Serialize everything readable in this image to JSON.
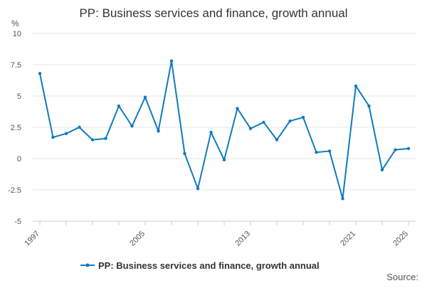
{
  "chart_data": {
    "type": "line",
    "title": "PP: Business services and finance, growth annual",
    "ylabel": "%",
    "ylim": [
      -5,
      10
    ],
    "yticks": [
      -5,
      -2.5,
      0,
      2.5,
      5,
      7.5,
      10
    ],
    "ytick_labels": [
      "-5",
      "-2.5",
      "0",
      "2.5",
      "5",
      "7.5",
      "10"
    ],
    "xlim": [
      1997,
      2025
    ],
    "xtick_labels": [
      "1997",
      "2005",
      "2013",
      "2021",
      "2025"
    ],
    "xticks": [
      1997,
      1999,
      2001,
      2003,
      2005,
      2007,
      2009,
      2011,
      2013,
      2015,
      2017,
      2019,
      2021,
      2023,
      2025
    ],
    "grid": true,
    "legend": "bottom",
    "series": [
      {
        "name": "PP: Business services and finance, growth annual",
        "color": "#0f7bbd",
        "x": [
          1997,
          1998,
          1999,
          2000,
          2001,
          2002,
          2003,
          2004,
          2005,
          2006,
          2007,
          2008,
          2009,
          2010,
          2011,
          2012,
          2013,
          2014,
          2015,
          2016,
          2017,
          2018,
          2019,
          2020,
          2021,
          2022,
          2023,
          2024,
          2025
        ],
        "values": [
          6.8,
          1.7,
          2.0,
          2.5,
          1.5,
          1.6,
          4.2,
          2.6,
          4.9,
          2.2,
          7.8,
          0.4,
          -2.4,
          2.1,
          -0.1,
          4.0,
          2.4,
          2.9,
          1.5,
          3.0,
          3.3,
          0.5,
          0.6,
          -3.2,
          5.8,
          4.2,
          -0.9,
          0.7,
          0.8
        ]
      }
    ]
  },
  "footer": {
    "source_label": "Source:"
  }
}
